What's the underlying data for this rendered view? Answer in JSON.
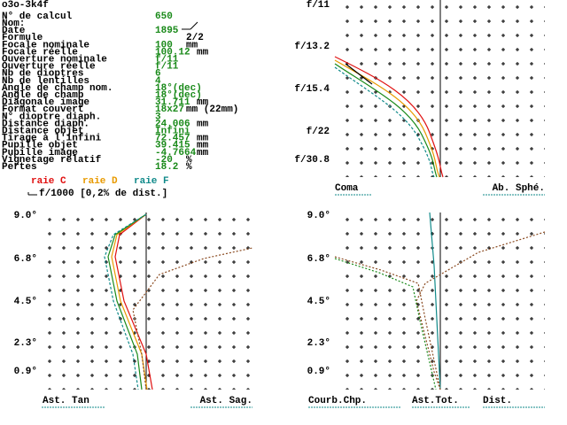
{
  "header": {
    "title": "o3o-3k4f"
  },
  "table": {
    "rows": [
      {
        "label": "N° de calcul",
        "value": "650"
      },
      {
        "label": "Nom:"
      },
      {
        "label": "Date",
        "value": "1895"
      },
      {
        "label": "Formule",
        "unit": "2/2"
      },
      {
        "label": "Focale nominale",
        "value": "100",
        "unit": "mm"
      },
      {
        "label": "Focale réelle",
        "value": "100.12",
        "unit": "mm"
      },
      {
        "label": "Ouverture nominale",
        "value": "f/11"
      },
      {
        "label": "Ouverture réelle",
        "value": "f/11"
      },
      {
        "label": "Nb de dioptres",
        "value": "6"
      },
      {
        "label": "Nb de lentilles",
        "value": "4"
      },
      {
        "label": "Angle de champ nom.",
        "value": "18°(dec)"
      },
      {
        "label": "Angle de champ",
        "value": "18°(dec)"
      },
      {
        "label": "Diagonale image",
        "value": "31.711",
        "unit": "mm"
      },
      {
        "label": "Format couvert",
        "value": "18x27",
        "unit": "mm (22mm)"
      },
      {
        "label": "N° dioptre diaph.",
        "value": "3"
      },
      {
        "label": "Distance diaph.",
        "value": "24.006",
        "unit": "mm"
      },
      {
        "label": "Distance objet",
        "value": "Infini"
      },
      {
        "label": "Tirage à l'infini",
        "value": "72.457",
        "unit": "mm"
      },
      {
        "label": "Pupille objet",
        "value": "39.415",
        "unit": "mm"
      },
      {
        "label": "Pupille image",
        "value": "-4.7664",
        "unit": "mm"
      },
      {
        "label": "Vignetage relatif",
        "value": "-20",
        "unit": "%"
      },
      {
        "label": "Pertes",
        "value": "18.2",
        "unit": "%"
      }
    ]
  },
  "legend": {
    "items": [
      {
        "label": "raie C",
        "color": "#e01010"
      },
      {
        "label": "raie D",
        "color": "#e89a00"
      },
      {
        "label": "raie F",
        "color": "#108a8a"
      }
    ],
    "scale_note": "f/1000 [0,2% de dist.]"
  },
  "charts": [
    {
      "axis_labels": [
        "f/11",
        "f/13.2",
        "f/15.4",
        "f/22",
        "f/30.8"
      ],
      "captions": [
        "Coma",
        "Ab. Sphé."
      ]
    },
    {
      "axis_labels": [
        "9.0°",
        "6.8°",
        "4.5°",
        "2.3°",
        "0.9°"
      ],
      "captions": [
        "Ast. Tan",
        "Ast. Sag."
      ]
    },
    {
      "axis_labels": [
        "9.0°",
        "6.8°",
        "4.5°",
        "2.3°",
        "0.9°"
      ],
      "captions": [
        "Courb.Chp.",
        "Ast.Tot.",
        "Dist."
      ]
    }
  ]
}
